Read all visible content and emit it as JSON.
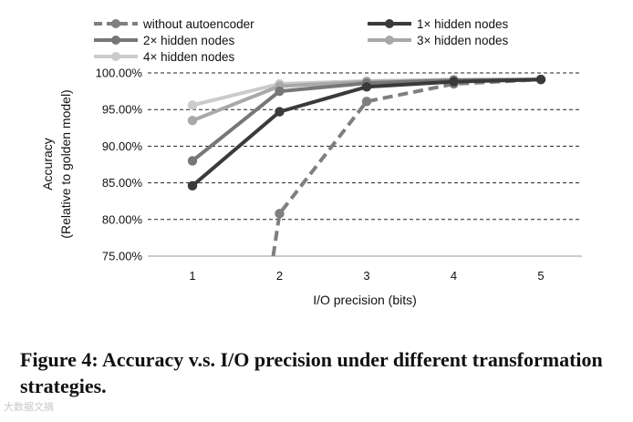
{
  "chart_data": {
    "type": "line",
    "x": [
      1,
      2,
      3,
      4,
      5
    ],
    "xlabel": "I/O precision (bits)",
    "ylabel": [
      "Accuracy",
      "(Relative to golden model)"
    ],
    "ylim": [
      75,
      100
    ],
    "yticks": [
      "75.00%",
      "80.00%",
      "85.00%",
      "90.00%",
      "95.00%",
      "100.00%"
    ],
    "ytick_values": [
      75,
      80,
      85,
      90,
      95,
      100
    ],
    "grid": "horizontal dashed",
    "legend_position": "top",
    "series": [
      {
        "name": "without autoencoder",
        "values": [
          null,
          80.8,
          96.1,
          98.5,
          99.1
        ],
        "color": "#7f7f7f",
        "dashed": true,
        "lower_tail_from": 75.0
      },
      {
        "name": "1× hidden nodes",
        "values": [
          84.6,
          94.7,
          98.1,
          98.8,
          99.1
        ],
        "color": "#3a3a3a",
        "dashed": false
      },
      {
        "name": "2× hidden nodes",
        "values": [
          88.0,
          97.5,
          98.6,
          99.0,
          99.1
        ],
        "color": "#777777",
        "dashed": false
      },
      {
        "name": "3× hidden nodes",
        "values": [
          93.5,
          98.2,
          98.8,
          99.0,
          99.1
        ],
        "color": "#a8a8a8",
        "dashed": false
      },
      {
        "name": "4× hidden nodes",
        "values": [
          95.6,
          98.5,
          98.9,
          99.1,
          99.1
        ],
        "color": "#cbcbcb",
        "dashed": false
      }
    ]
  },
  "caption": "Figure 4: Accuracy v.s. I/O precision under different transformation strategies.",
  "watermark": "大数据文摘"
}
